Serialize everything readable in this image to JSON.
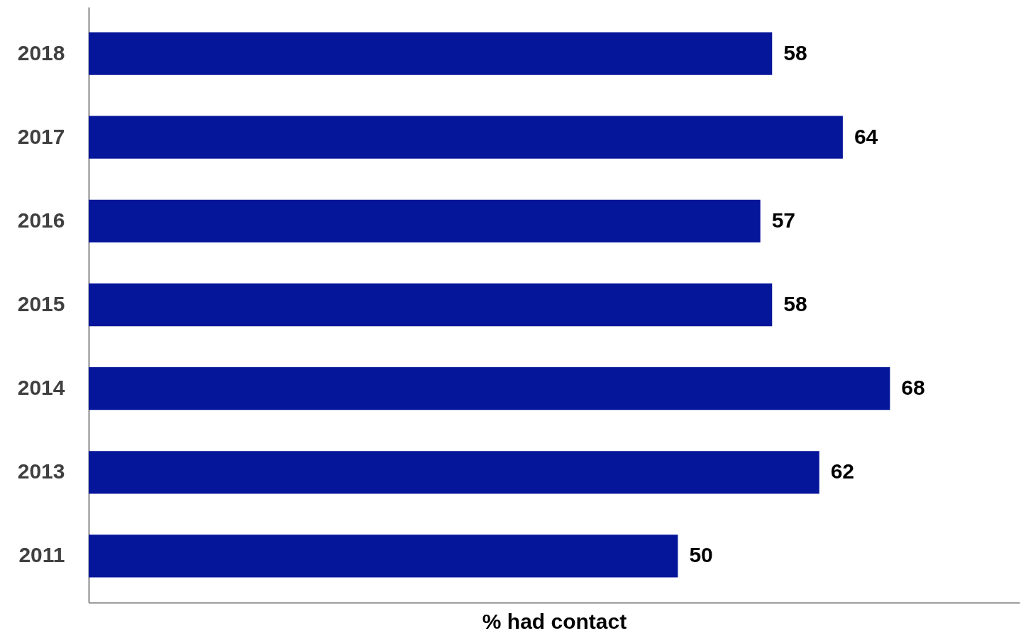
{
  "chart_data": {
    "type": "bar",
    "orientation": "horizontal",
    "xlabel": "% had contact",
    "categories": [
      "2018",
      "2017",
      "2016",
      "2015",
      "2014",
      "2013",
      "2011"
    ],
    "values": [
      58,
      64,
      57,
      58,
      68,
      62,
      50
    ],
    "color": "#06169a",
    "xlim": [
      0,
      79
    ],
    "data_labels": true,
    "tick_labels": "y",
    "grid": false
  }
}
